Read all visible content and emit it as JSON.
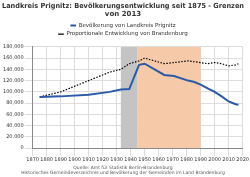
{
  "chart_data": {
    "type": "line",
    "title": [
      "Landkreis Prignitz: Bevölkerungsentwicklung seit 1875 - Grenzen",
      "von 2013"
    ],
    "subtitle": [
      "Quelle: Amt für Statistik Berlin-Brandenburg",
      "Historisches Gemeindeverzeichnis und Bevölkerung der Gemeinden im Land Brandenburg"
    ],
    "series": [
      {
        "name": "Bevölkerung von Landkreis Prignitz",
        "color": "#2a5aa8",
        "line_style": "solid",
        "x": [
          1875,
          1890,
          1910,
          1925,
          1933,
          1939,
          1946,
          1950,
          1964,
          1971,
          1981,
          1985,
          1990,
          1995,
          2000,
          2005,
          2010,
          2015,
          2017
        ],
        "values": [
          91000,
          92000,
          95000,
          100000,
          104000,
          105000,
          148000,
          150000,
          130000,
          128000,
          120000,
          118000,
          113000,
          106000,
          100000,
          92000,
          83000,
          78000,
          77000
        ]
      },
      {
        "name": "Proportionale Entwicklung von Brandenburg",
        "color": "#000000",
        "line_style": "dotted",
        "x": [
          1875,
          1890,
          1910,
          1925,
          1933,
          1939,
          1946,
          1950,
          1964,
          1971,
          1981,
          1990,
          1995,
          2000,
          2005,
          2010,
          2015,
          2017
        ],
        "values": [
          91000,
          100000,
          120000,
          135000,
          140000,
          150000,
          155000,
          160000,
          150000,
          152000,
          155000,
          152000,
          150000,
          152000,
          150000,
          146000,
          148000,
          150000
        ]
      }
    ],
    "periods": [
      {
        "from": 1933,
        "to": 1945,
        "color": "#c4c4c4"
      },
      {
        "from": 1945,
        "to": 1990,
        "color": "#f6c9a8"
      }
    ],
    "xlim": [
      1870,
      2020
    ],
    "xticks": [
      1870,
      1880,
      1890,
      1900,
      1910,
      1920,
      1930,
      1940,
      1950,
      1960,
      1970,
      1980,
      1990,
      2000,
      2010,
      2020
    ],
    "ylim": [
      0,
      180000
    ],
    "yticks": [
      0,
      {
        "value": 20000,
        "label": "20,000"
      },
      {
        "value": 40000,
        "label": "40,000"
      },
      {
        "value": 60000,
        "label": "60,000"
      },
      {
        "value": 80000,
        "label": "80,000"
      },
      {
        "value": 100000,
        "label": "100,000"
      },
      {
        "value": 120000,
        "label": "120,000"
      },
      {
        "value": 140000,
        "label": "140,000"
      },
      {
        "value": 160000,
        "label": "160,000"
      },
      {
        "value": 180000,
        "label": "180,000"
      }
    ],
    "grid": true,
    "legend": "top"
  }
}
